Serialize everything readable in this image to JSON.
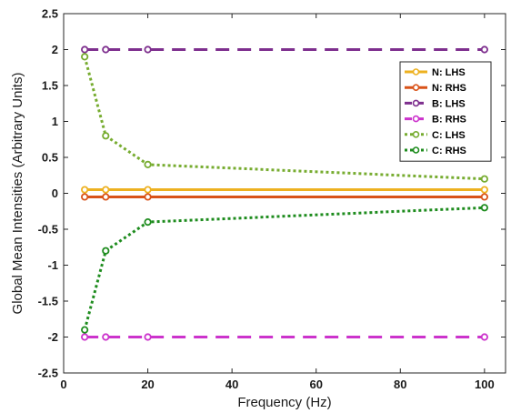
{
  "chart_data": {
    "type": "line",
    "title": "",
    "xlabel": "Frequency (Hz)",
    "ylabel": "Global Mean Intensities (Arbitrary Units)",
    "xlim": [
      0,
      105
    ],
    "ylim": [
      -2.5,
      2.5
    ],
    "xticks": [
      0,
      20,
      40,
      60,
      80,
      100
    ],
    "yticks": [
      -2.5,
      -2,
      -1.5,
      -1,
      -0.5,
      0,
      0.5,
      1,
      1.5,
      2,
      2.5
    ],
    "xtick_labels": [
      "0",
      "20",
      "40",
      "60",
      "80",
      "100"
    ],
    "ytick_labels": [
      "-2.5",
      "-2",
      "-1.5",
      "-1",
      "-0.5",
      "0",
      "0.5",
      "1",
      "1.5",
      "2",
      "2.5"
    ],
    "grid": false,
    "legend_position": "top-right",
    "x": [
      5,
      10,
      20,
      100
    ],
    "series": [
      {
        "name": "N: LHS",
        "values": [
          0.05,
          0.05,
          0.05,
          0.05
        ],
        "color": "#EDB120",
        "style": "solid"
      },
      {
        "name": "N: RHS",
        "values": [
          -0.05,
          -0.05,
          -0.05,
          -0.05
        ],
        "color": "#D95319",
        "style": "solid"
      },
      {
        "name": "B: LHS",
        "values": [
          2,
          2,
          2,
          2
        ],
        "color": "#7E2F8E",
        "style": "dashed"
      },
      {
        "name": "B: RHS",
        "values": [
          -2,
          -2,
          -2,
          -2
        ],
        "color": "#CC33CC",
        "style": "dashed"
      },
      {
        "name": "C: LHS",
        "values": [
          1.9,
          0.8,
          0.4,
          0.2
        ],
        "color": "#77AC30",
        "style": "dotted"
      },
      {
        "name": "C: RHS",
        "values": [
          -1.9,
          -0.8,
          -0.4,
          -0.2
        ],
        "color": "#1E8C1E",
        "style": "dotted"
      }
    ]
  }
}
